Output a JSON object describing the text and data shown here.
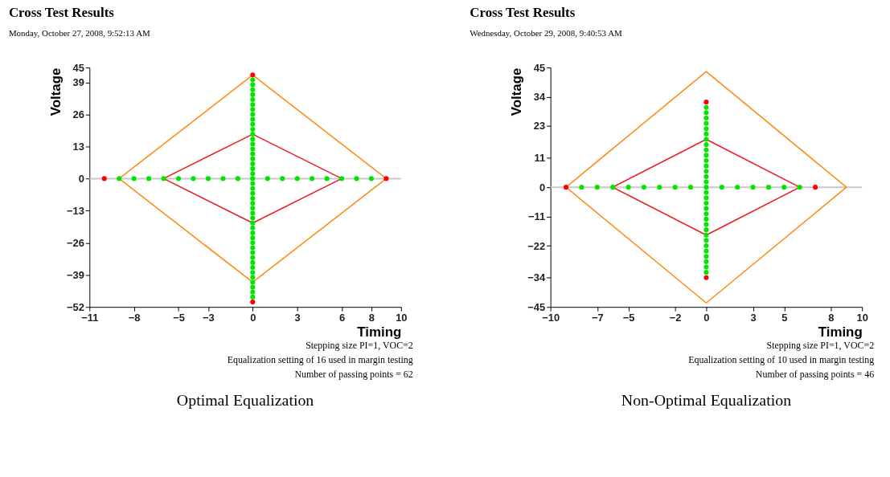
{
  "chart_data": [
    {
      "type": "scatter",
      "title": "Cross Test Results",
      "subtitle": "Monday, October 27, 2008, 9:52:13 AM",
      "xlabel": "Timing",
      "ylabel": "Voltage",
      "xlim": [
        -11,
        10
      ],
      "xticks": [
        -11,
        -8,
        -5,
        -3,
        0,
        3,
        6,
        8,
        10
      ],
      "ylim": [
        -52,
        45
      ],
      "yticks": [
        -52,
        -39,
        -26,
        -13,
        0,
        13,
        26,
        39,
        45
      ],
      "grid": false,
      "marker": "circle",
      "ref_lines": [
        {
          "axis": "y",
          "value": 0,
          "color": "#c8c8c8"
        }
      ],
      "series": [
        {
          "type": "line",
          "marker": "none",
          "color": "#ff8c1a",
          "x": [
            -9,
            0,
            9
          ],
          "values": [
            0,
            42,
            0
          ]
        },
        {
          "type": "line",
          "marker": "none",
          "color": "#ff8c1a",
          "x": [
            -9,
            0,
            9
          ],
          "values": [
            0,
            -42,
            0
          ]
        },
        {
          "type": "line",
          "marker": "none",
          "color": "#ee1c24",
          "x": [
            -6,
            0,
            6
          ],
          "values": [
            0,
            18,
            0
          ]
        },
        {
          "type": "line",
          "marker": "none",
          "color": "#ee1c24",
          "x": [
            -6,
            0,
            6
          ],
          "values": [
            0,
            -18,
            0
          ]
        },
        {
          "color": "#00e600",
          "x": [
            -9,
            -8,
            -7,
            -6,
            -5,
            -4,
            -3,
            -2,
            -1,
            1,
            2,
            3,
            4,
            5,
            6,
            7,
            8,
            0,
            0,
            0,
            0,
            0,
            0,
            0,
            0,
            0,
            0,
            0,
            0,
            0,
            0,
            0,
            0,
            0,
            0,
            0,
            0,
            0,
            0,
            0,
            0,
            0,
            0,
            0,
            0,
            0,
            0,
            0,
            0,
            0,
            0,
            0,
            0,
            0,
            0,
            0,
            0,
            0,
            0,
            0,
            0,
            0
          ],
          "values": [
            0,
            0,
            0,
            0,
            0,
            0,
            0,
            0,
            0,
            0,
            0,
            0,
            0,
            0,
            0,
            0,
            0,
            40,
            38,
            36,
            34,
            32,
            30,
            28,
            26,
            24,
            22,
            20,
            18,
            16,
            14,
            12,
            10,
            8,
            6,
            4,
            2,
            0,
            -2,
            -4,
            -6,
            -8,
            -10,
            -12,
            -14,
            -16,
            -18,
            -20,
            -22,
            -24,
            -26,
            -28,
            -30,
            -32,
            -34,
            -36,
            -38,
            -40,
            -42,
            -44,
            -46,
            -48
          ]
        },
        {
          "color": "#ff0000",
          "x": [
            -10,
            9,
            0,
            0
          ],
          "values": [
            0,
            0,
            42,
            -50
          ]
        }
      ],
      "annotations": [
        "Stepping size PI=1, VOC=2",
        "Equalization setting of 16 used in margin testing",
        "Number of passing points = 62",
        "Optimal Equalization"
      ]
    },
    {
      "type": "scatter",
      "title": "Cross Test Results",
      "subtitle": "Wednesday, October 29, 2008, 9:40:53 AM",
      "xlabel": "Timing",
      "ylabel": "Voltage",
      "xlim": [
        -10,
        10
      ],
      "xticks": [
        -10,
        -7,
        -5,
        -2,
        0,
        3,
        5,
        8,
        10
      ],
      "ylim": [
        -45,
        45
      ],
      "yticks": [
        -45,
        -34,
        -22,
        -11,
        0,
        11,
        23,
        34,
        45
      ],
      "grid": false,
      "marker": "circle",
      "ref_lines": [
        {
          "axis": "y",
          "value": 0,
          "color": "#c8c8c8"
        }
      ],
      "series": [
        {
          "type": "line",
          "marker": "none",
          "color": "#ff8c1a",
          "x": [
            -9,
            0,
            9
          ],
          "values": [
            0,
            43.5,
            0
          ]
        },
        {
          "type": "line",
          "marker": "none",
          "color": "#ff8c1a",
          "x": [
            -9,
            0,
            9
          ],
          "values": [
            0,
            -43.5,
            0
          ]
        },
        {
          "type": "line",
          "marker": "none",
          "color": "#ee1c24",
          "x": [
            -6,
            0,
            6
          ],
          "values": [
            0,
            18,
            0
          ]
        },
        {
          "type": "line",
          "marker": "none",
          "color": "#ee1c24",
          "x": [
            -6,
            0,
            6
          ],
          "values": [
            0,
            -18,
            0
          ]
        },
        {
          "color": "#00e600",
          "x": [
            -8,
            -7,
            -6,
            -5,
            -4,
            -3,
            -2,
            -1,
            1,
            2,
            3,
            4,
            5,
            6,
            0,
            0,
            0,
            0,
            0,
            0,
            0,
            0,
            0,
            0,
            0,
            0,
            0,
            0,
            0,
            0,
            0,
            0,
            0,
            0,
            0,
            0,
            0,
            0,
            0,
            0,
            0,
            0,
            0,
            0,
            0,
            0
          ],
          "values": [
            0,
            0,
            0,
            0,
            0,
            0,
            0,
            0,
            0,
            0,
            0,
            0,
            0,
            0,
            30,
            28,
            26,
            24,
            22,
            20,
            18,
            16,
            14,
            12,
            10,
            8,
            6,
            4,
            2,
            0,
            -2,
            -4,
            -6,
            -8,
            -10,
            -12,
            -14,
            -16,
            -18,
            -20,
            -22,
            -24,
            -26,
            -28,
            -30,
            -32
          ]
        },
        {
          "color": "#ff0000",
          "x": [
            -9,
            7,
            0,
            0
          ],
          "values": [
            0,
            0,
            32,
            -34
          ]
        }
      ],
      "annotations": [
        "Stepping size PI=1, VOC=2",
        "Equalization setting of 10 used in margin testing",
        "Number of passing points = 46",
        "Non-Optimal Equalization"
      ]
    }
  ]
}
